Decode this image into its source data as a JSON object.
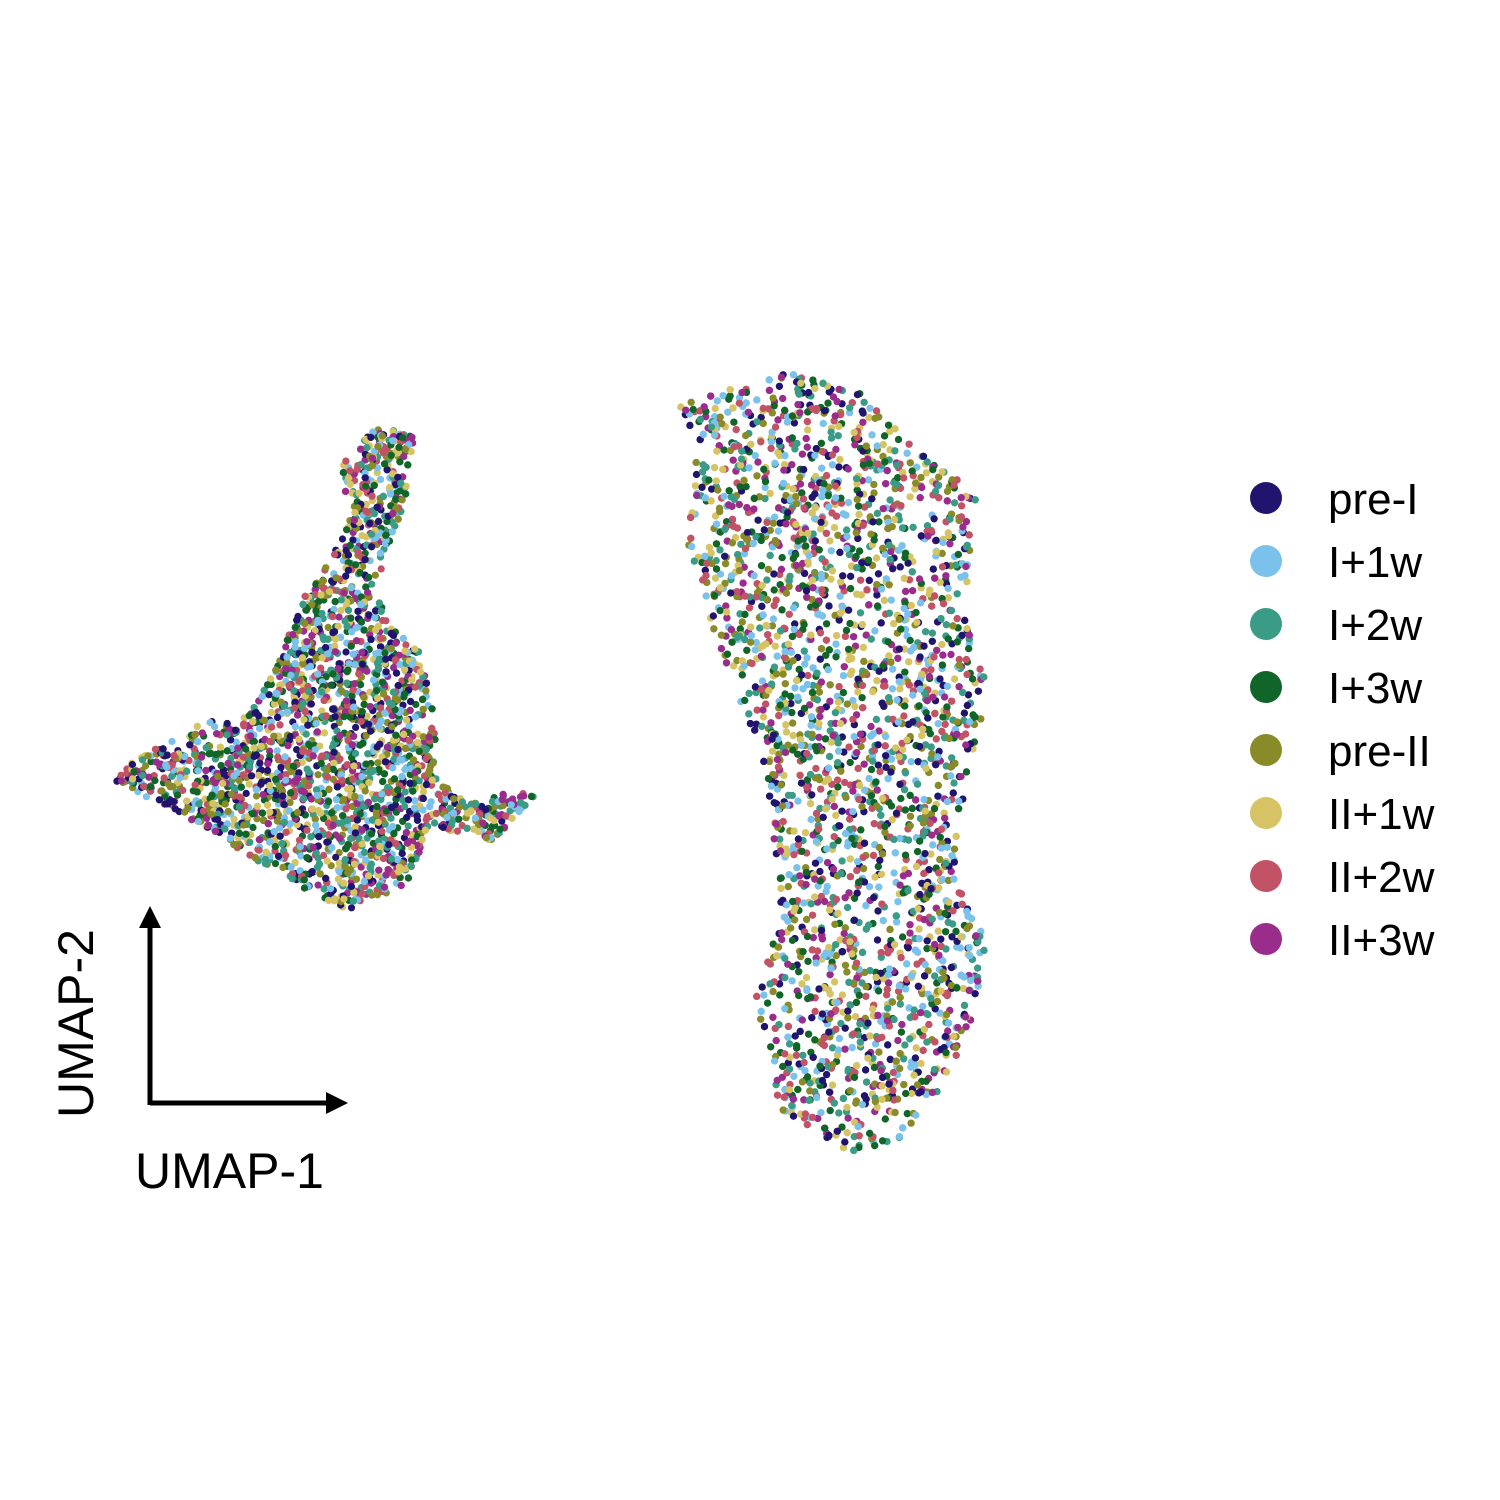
{
  "chart_data": {
    "type": "scatter",
    "title": "",
    "xlabel": "UMAP-1",
    "ylabel": "UMAP-2",
    "axis_style": "corner-arrows",
    "grid": false,
    "xlim": [
      -10,
      12
    ],
    "ylim": [
      -8,
      8
    ],
    "legend_placement": "right",
    "series": [
      {
        "name": "pre-I",
        "color": "#21146E"
      },
      {
        "name": "I+1w",
        "color": "#7AC2EB"
      },
      {
        "name": "I+2w",
        "color": "#3A9B87"
      },
      {
        "name": "I+3w",
        "color": "#126529"
      },
      {
        "name": "pre-II",
        "color": "#898A28"
      },
      {
        "name": "II+1w",
        "color": "#D6C464"
      },
      {
        "name": "II+2w",
        "color": "#C25266"
      },
      {
        "name": "II+3w",
        "color": "#9A2C8C"
      }
    ],
    "clusters": [
      {
        "name": "left",
        "note": "cells from all timepoints intermixed",
        "outline": [
          [
            -4.8,
            5.0
          ],
          [
            -4.2,
            5.6
          ],
          [
            -3.4,
            5.5
          ],
          [
            -3.6,
            4.4
          ],
          [
            -4.1,
            3.2
          ],
          [
            -4.0,
            2.2
          ],
          [
            -3.4,
            1.8
          ],
          [
            -3.1,
            0.6
          ],
          [
            -3.0,
            -0.3
          ],
          [
            -2.4,
            -0.9
          ],
          [
            -1.6,
            -0.7
          ],
          [
            -1.2,
            -0.8
          ],
          [
            -2.0,
            -1.6
          ],
          [
            -3.2,
            -1.3
          ],
          [
            -3.6,
            -2.4
          ],
          [
            -4.8,
            -2.8
          ],
          [
            -6.0,
            -2.2
          ],
          [
            -7.0,
            -1.6
          ],
          [
            -8.4,
            -0.9
          ],
          [
            -9.2,
            -0.5
          ],
          [
            -8.5,
            0.0
          ],
          [
            -7.4,
            0.5
          ],
          [
            -6.6,
            0.6
          ],
          [
            -6.1,
            1.4
          ],
          [
            -5.6,
            2.6
          ],
          [
            -5.0,
            3.4
          ],
          [
            -4.6,
            4.2
          ],
          [
            -4.9,
            4.7
          ]
        ]
      },
      {
        "name": "right",
        "note": "cells from all timepoints intermixed",
        "outline": [
          [
            1.5,
            6.0
          ],
          [
            3.8,
            6.6
          ],
          [
            5.0,
            6.2
          ],
          [
            6.1,
            5.2
          ],
          [
            7.2,
            4.5
          ],
          [
            7.0,
            2.6
          ],
          [
            7.4,
            1.0
          ],
          [
            7.0,
            -0.6
          ],
          [
            6.8,
            -2.2
          ],
          [
            7.4,
            -3.4
          ],
          [
            7.0,
            -5.2
          ],
          [
            5.8,
            -6.8
          ],
          [
            4.8,
            -7.0
          ],
          [
            3.4,
            -6.2
          ],
          [
            3.0,
            -4.2
          ],
          [
            3.5,
            -2.8
          ],
          [
            3.3,
            -1.4
          ],
          [
            3.0,
            0.2
          ],
          [
            2.3,
            1.8
          ],
          [
            1.7,
            3.6
          ],
          [
            1.9,
            5.2
          ]
        ]
      }
    ]
  }
}
